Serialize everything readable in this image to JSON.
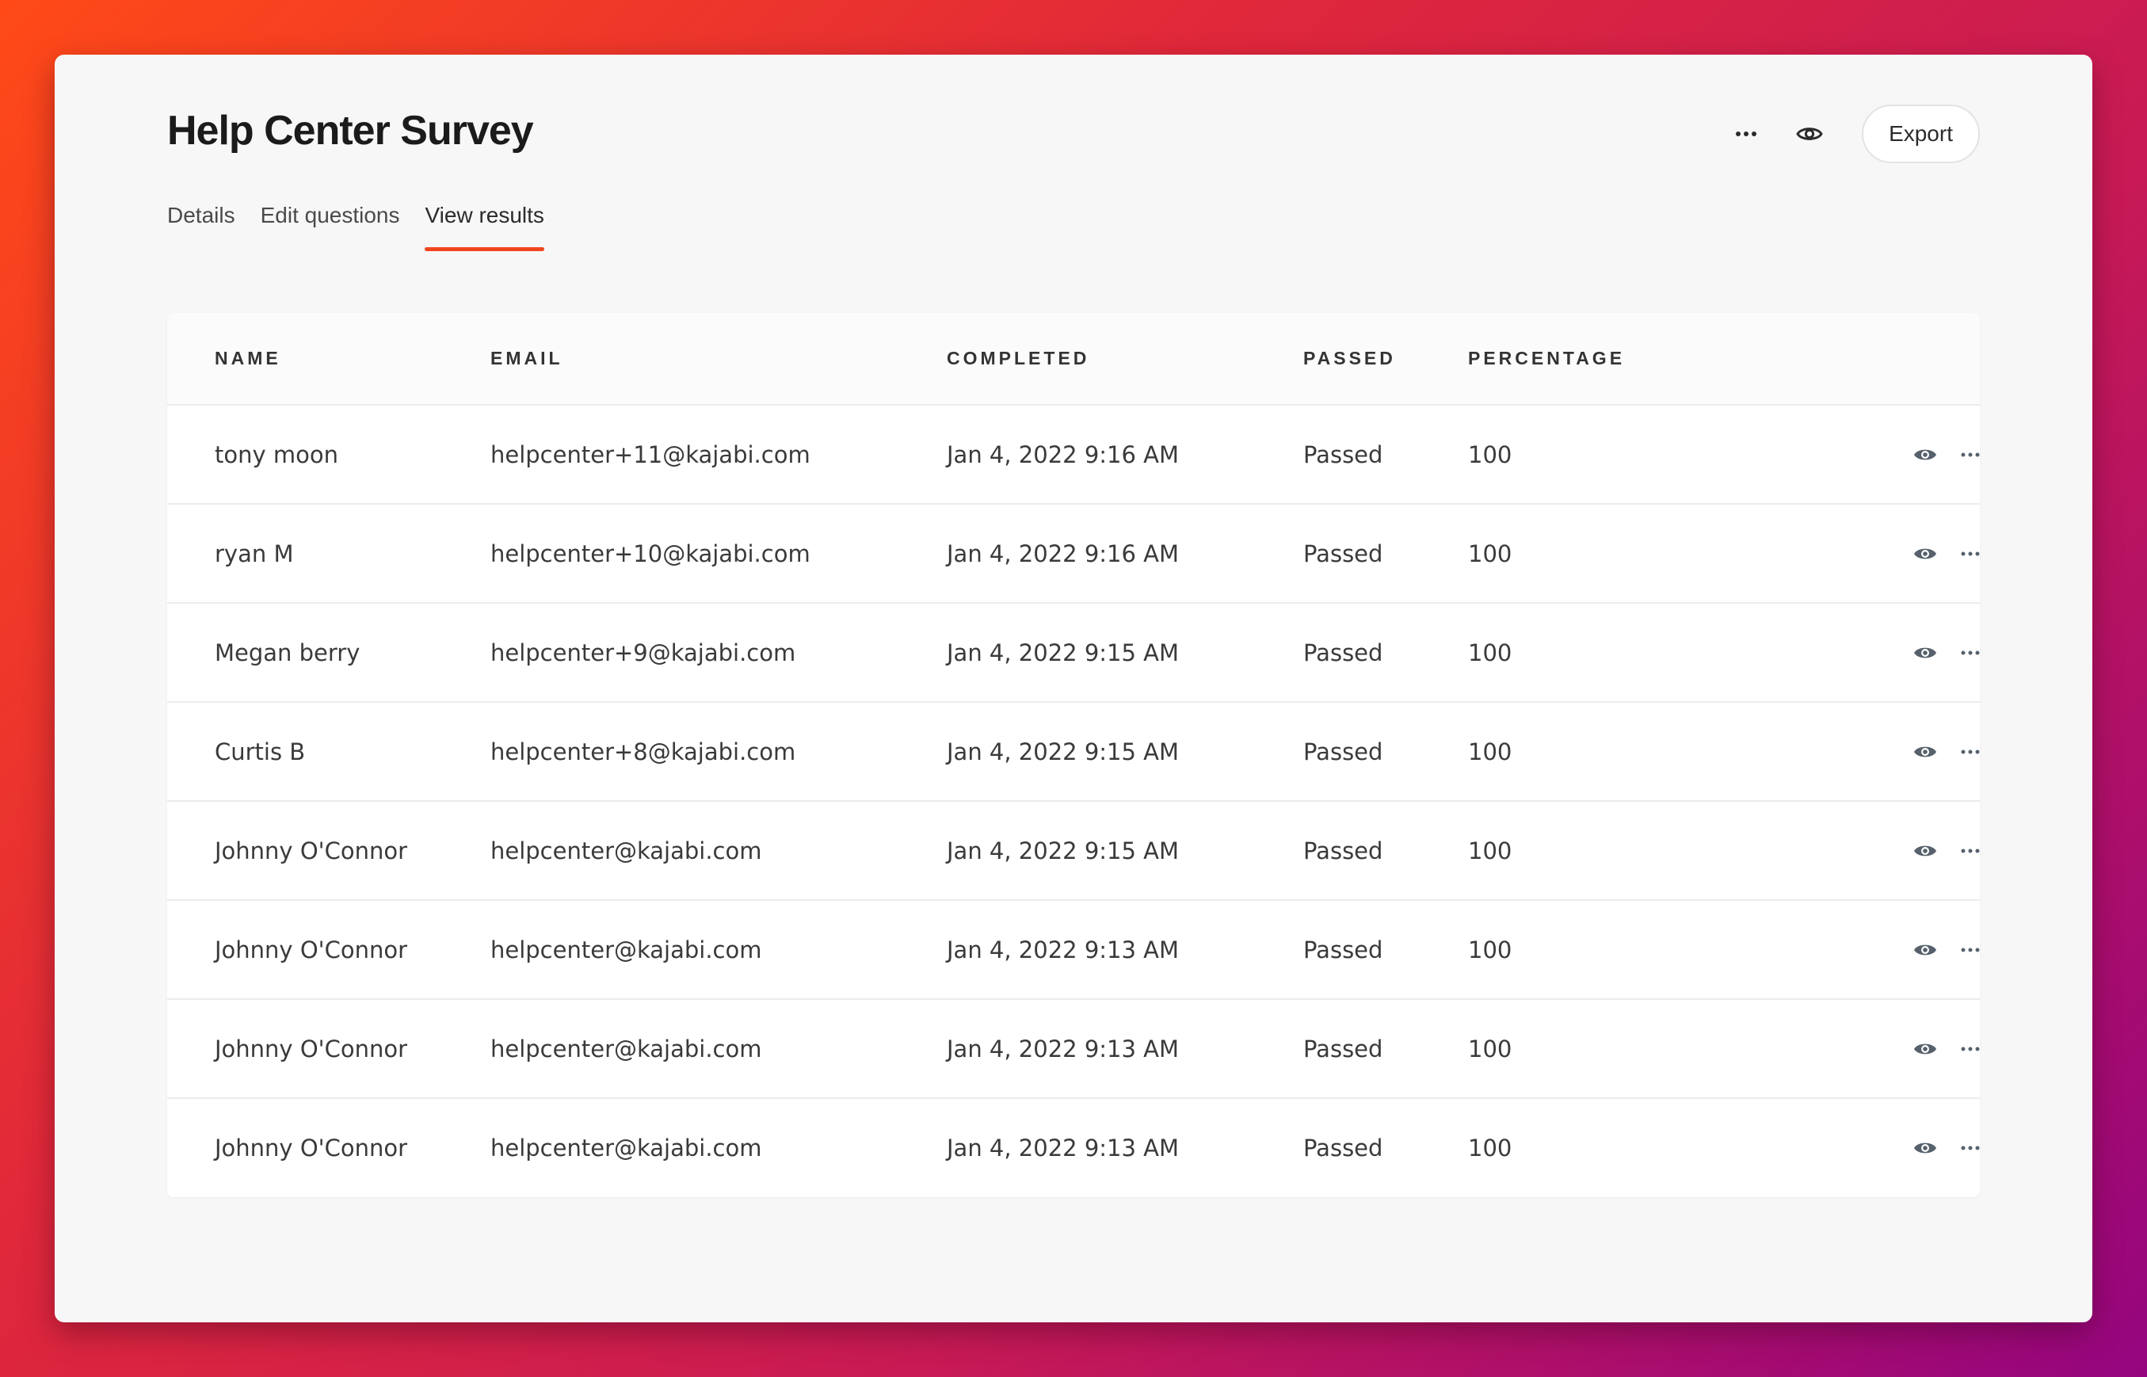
{
  "page": {
    "title": "Help Center Survey"
  },
  "header_actions": {
    "more_icon": "ellipsis-horizontal-icon",
    "preview_icon": "eye-icon",
    "export_label": "Export"
  },
  "tabs": [
    {
      "label": "Details",
      "active": false
    },
    {
      "label": "Edit questions",
      "active": false
    },
    {
      "label": "View results",
      "active": true
    }
  ],
  "table": {
    "columns": [
      "NAME",
      "EMAIL",
      "COMPLETED",
      "PASSED",
      "PERCENTAGE"
    ],
    "rows": [
      {
        "name": "tony moon",
        "email": "helpcenter+11@kajabi.com",
        "completed": "Jan 4, 2022 9:16 AM",
        "passed": "Passed",
        "percentage": "100"
      },
      {
        "name": "ryan M",
        "email": "helpcenter+10@kajabi.com",
        "completed": "Jan 4, 2022 9:16 AM",
        "passed": "Passed",
        "percentage": "100"
      },
      {
        "name": "Megan berry",
        "email": "helpcenter+9@kajabi.com",
        "completed": "Jan 4, 2022 9:15 AM",
        "passed": "Passed",
        "percentage": "100"
      },
      {
        "name": "Curtis B",
        "email": "helpcenter+8@kajabi.com",
        "completed": "Jan 4, 2022 9:15 AM",
        "passed": "Passed",
        "percentage": "100"
      },
      {
        "name": "Johnny O'Connor",
        "email": "helpcenter@kajabi.com",
        "completed": "Jan 4, 2022 9:15 AM",
        "passed": "Passed",
        "percentage": "100"
      },
      {
        "name": "Johnny O'Connor",
        "email": "helpcenter@kajabi.com",
        "completed": "Jan 4, 2022 9:13 AM",
        "passed": "Passed",
        "percentage": "100"
      },
      {
        "name": "Johnny O'Connor",
        "email": "helpcenter@kajabi.com",
        "completed": "Jan 4, 2022 9:13 AM",
        "passed": "Passed",
        "percentage": "100"
      },
      {
        "name": "Johnny O'Connor",
        "email": "helpcenter@kajabi.com",
        "completed": "Jan 4, 2022 9:13 AM",
        "passed": "Passed",
        "percentage": "100"
      }
    ],
    "row_action_icons": [
      "eye-icon",
      "ellipsis-horizontal-icon"
    ]
  },
  "colors": {
    "accent": "#f0451f",
    "background_gradient_start": "#ff4a17",
    "background_gradient_end": "#95057f",
    "card_background": "#f7f7f7",
    "table_background": "#ffffff",
    "row_icon": "#56616c"
  }
}
